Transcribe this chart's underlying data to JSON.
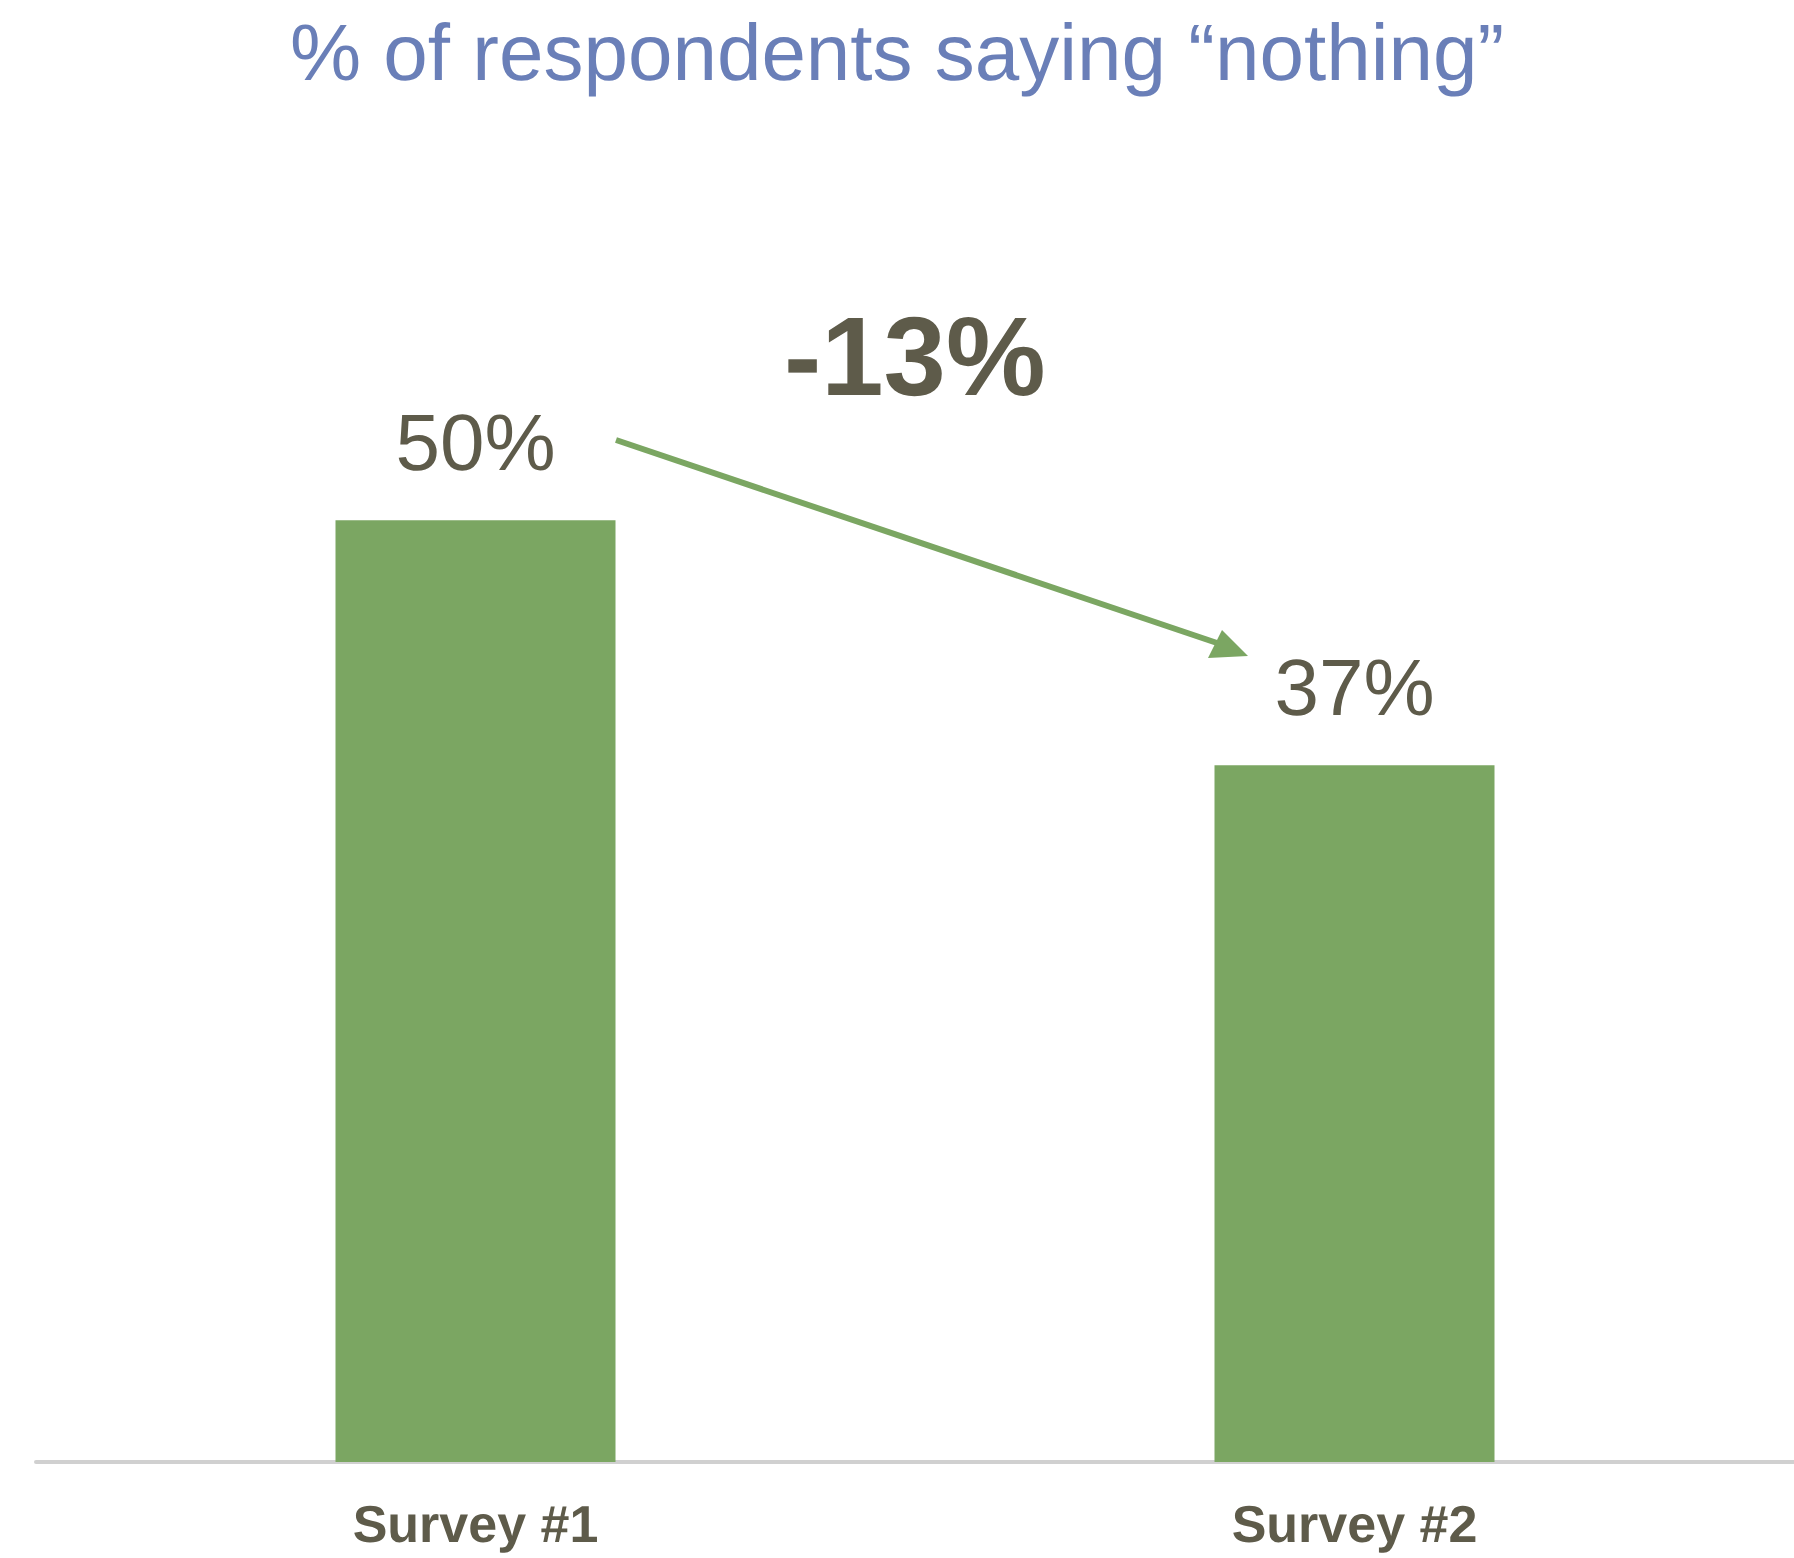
{
  "chart_data": {
    "type": "bar",
    "title": "% of respondents saying “nothing”",
    "categories": [
      "Survey #1",
      "Survey #2"
    ],
    "values": [
      50,
      37
    ],
    "color": "#7ba662",
    "value_labels": [
      "50%",
      "37%"
    ],
    "annotations": [
      "-13%"
    ]
  }
}
